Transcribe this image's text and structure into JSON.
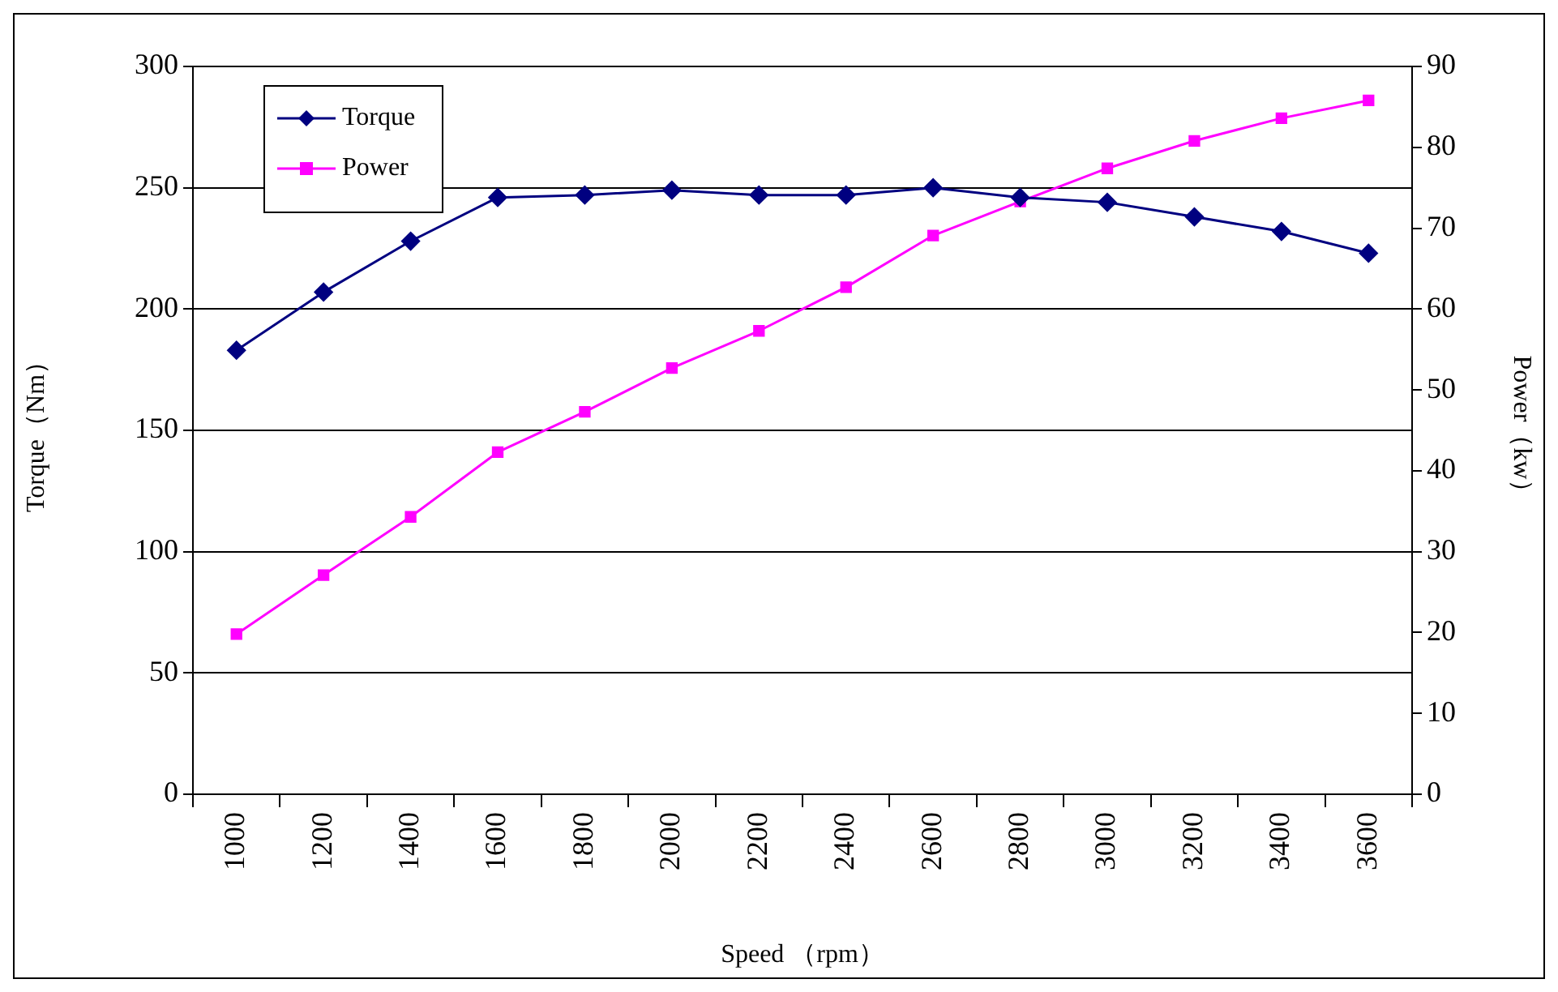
{
  "chart_data": {
    "type": "line",
    "categories": [
      "1000",
      "1200",
      "1400",
      "1600",
      "1800",
      "2000",
      "2200",
      "2400",
      "2600",
      "2800",
      "3000",
      "3200",
      "3400",
      "3600"
    ],
    "series": [
      {
        "name": "Torque",
        "color": "#000080",
        "marker": "diamond",
        "values": [
          183,
          207,
          228,
          246,
          247,
          249,
          247,
          247,
          250,
          246,
          244,
          238,
          232,
          223
        ]
      },
      {
        "name": "Power",
        "color": "#ff00ff",
        "marker": "square",
        "axis": "y2",
        "values": [
          19.8,
          27.1,
          34.3,
          42.3,
          47.3,
          52.7,
          57.3,
          62.7,
          69.1,
          73.3,
          77.4,
          80.8,
          83.6,
          85.8
        ]
      }
    ],
    "xlabel": "Speed （rpm）",
    "ylabel": "Torque（Nm）",
    "y2label": "Power（kw）",
    "ylim": [
      0,
      300
    ],
    "yticks": [
      0,
      50,
      100,
      150,
      200,
      250,
      300
    ],
    "y2lim": [
      0,
      90
    ],
    "y2ticks": [
      0,
      10,
      20,
      30,
      40,
      50,
      60,
      70,
      80,
      90
    ],
    "grid": "y",
    "legend": "top left"
  }
}
